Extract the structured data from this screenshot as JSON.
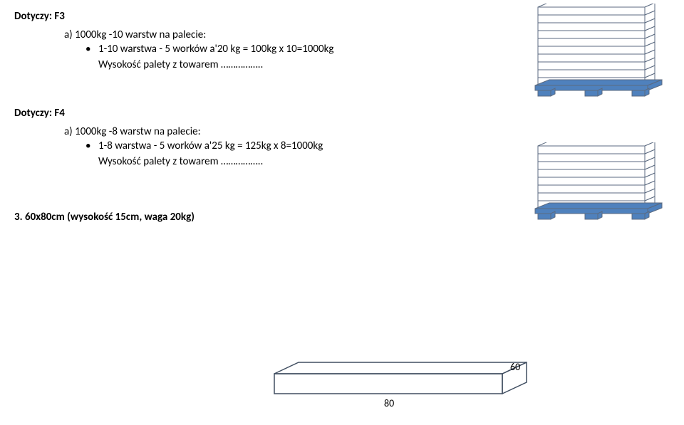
{
  "sections": [
    {
      "heading": "Dotyczy: F3",
      "item_label": "a)  1000kg -10 warstw na palecie:",
      "bullet": "1-10 warstwa - 5 worków a'20 kg = 100kg x 10=1000kg",
      "height_label": "Wysokość palety z towarem ……………..",
      "layers": 10
    },
    {
      "heading": "Dotyczy: F4",
      "item_label": "a)  1000kg -8 warstw na palecie:",
      "bullet": "1-8 warstwa - 5 worków a'25 kg = 125kg x 8=1000kg",
      "height_label": "Wysokość palety z towarem ……………..",
      "layers": 8
    }
  ],
  "section3": {
    "heading": "3.    60x80cm (wysokość 15cm, waga 20kg)",
    "depth_label": "60",
    "width_label": "80"
  },
  "style": {
    "layer_fill": "#ffffff",
    "layer_stroke": "#5b6a80",
    "base_fill": "#4f81bd",
    "foot_fill": "#4f81bd",
    "slab_stroke": "#404e61"
  }
}
